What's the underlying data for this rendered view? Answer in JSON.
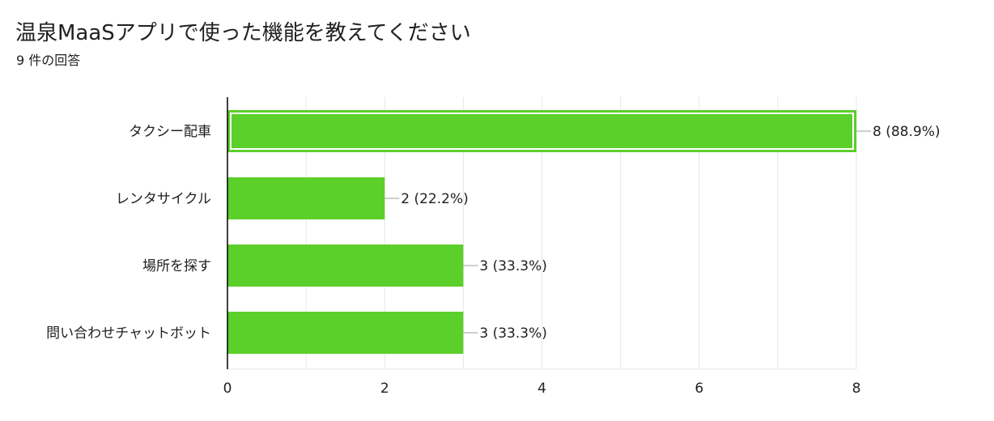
{
  "title": "温泉MaaSアプリで使った機能を教えてください",
  "subtitle": "9 件の回答",
  "colors": {
    "bar": "#5bcf2a",
    "bar_highlight_border": "#ffffff",
    "grid": "#e6e6e6",
    "axis": "#000000",
    "text": "#202124",
    "connector": "#9e9e9e"
  },
  "chart_data": {
    "type": "bar",
    "orientation": "horizontal",
    "categories": [
      "タクシー配車",
      "レンタサイクル",
      "場所を探す",
      "問い合わせチャットボット"
    ],
    "values": [
      8,
      2,
      3,
      3
    ],
    "value_labels": [
      "8 (88.9%)",
      "2 (22.2%)",
      "3 (33.3%)",
      "3 (33.3%)"
    ],
    "highlighted_index": 0,
    "xlim": [
      0,
      8
    ],
    "xticks": [
      0,
      2,
      4,
      6,
      8
    ],
    "minor_grid_step": 1,
    "grid": true,
    "legend": "none"
  }
}
